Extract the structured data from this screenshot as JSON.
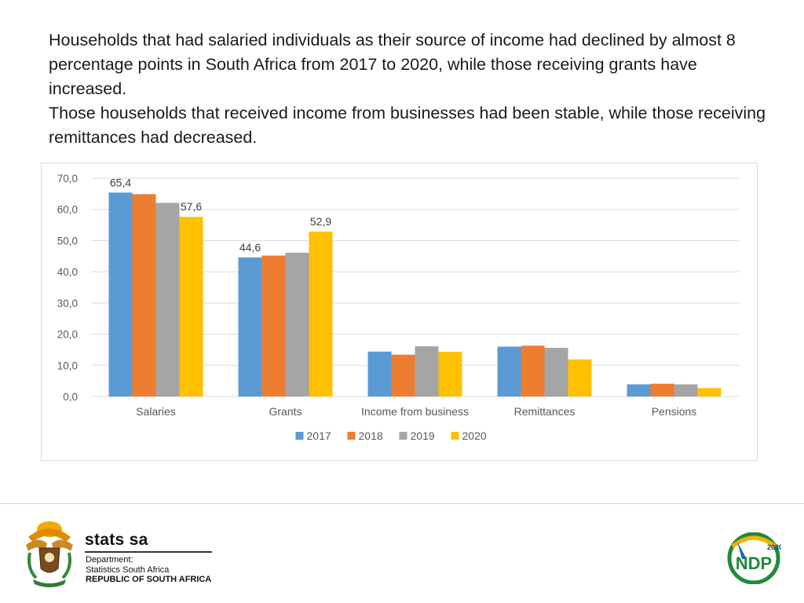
{
  "intro": {
    "line1": "Households that had salaried individuals as their source of income had declined by almost 8 percentage points in South Africa from 2017 to 2020, while those receiving grants have increased.",
    "line2": "Those households that received income from businesses had been stable, while those receiving remittances had decreased."
  },
  "chart_data": {
    "type": "bar",
    "categories": [
      "Salaries",
      "Grants",
      "Income from business",
      "Remittances",
      "Pensions"
    ],
    "series": [
      {
        "name": "2017",
        "color": "#5b9bd5",
        "values": [
          65.4,
          44.6,
          14.4,
          16.0,
          3.9
        ]
      },
      {
        "name": "2018",
        "color": "#ed7d31",
        "values": [
          64.9,
          45.2,
          13.4,
          16.3,
          4.1
        ]
      },
      {
        "name": "2019",
        "color": "#a5a5a5",
        "values": [
          62.1,
          46.1,
          16.1,
          15.6,
          3.9
        ]
      },
      {
        "name": "2020",
        "color": "#ffc000",
        "values": [
          57.6,
          52.9,
          14.3,
          11.9,
          2.7
        ]
      }
    ],
    "data_labels": [
      {
        "series": 0,
        "category": 0,
        "text": "65,4"
      },
      {
        "series": 3,
        "category": 0,
        "text": "57,6"
      },
      {
        "series": 0,
        "category": 1,
        "text": "44,6"
      },
      {
        "series": 3,
        "category": 1,
        "text": "52,9"
      }
    ],
    "y_ticks": [
      "0,0",
      "10,0",
      "20,0",
      "30,0",
      "40,0",
      "50,0",
      "60,0",
      "70,0"
    ],
    "ylim": [
      0,
      70
    ],
    "grid": true,
    "legend": "bottom"
  },
  "logos": {
    "stats_name": "stats sa",
    "dept_label": "Department:",
    "dept_name": "Statistics South Africa",
    "country": "REPUBLIC OF SOUTH AFRICA",
    "ndp_text": "NDP",
    "ndp_year": "2030"
  }
}
